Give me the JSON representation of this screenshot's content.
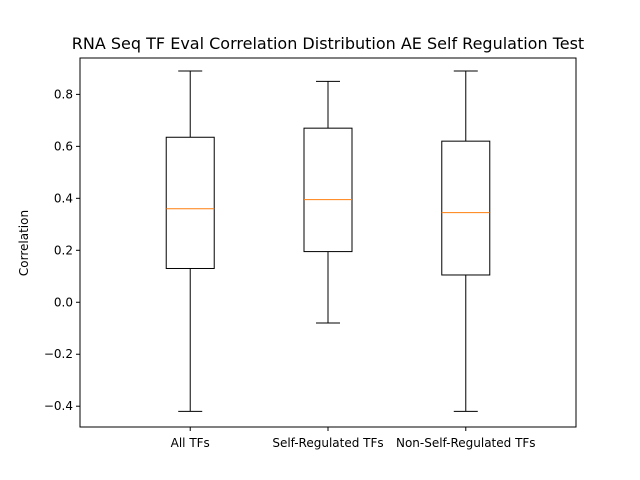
{
  "chart_data": {
    "type": "box",
    "title": "RNA Seq TF Eval Correlation Distribution AE Self Regulation Test",
    "xlabel": "",
    "ylabel": "Correlation",
    "ylim": [
      -0.48,
      0.94
    ],
    "yticks": [
      -0.4,
      -0.2,
      0.0,
      0.2,
      0.4,
      0.6,
      0.8
    ],
    "ytick_labels": [
      "−0.4",
      "−0.2",
      "0.0",
      "0.2",
      "0.4",
      "0.6",
      "0.8"
    ],
    "grid": false,
    "categories": [
      "All TFs",
      "Self-Regulated TFs",
      "Non-Self-Regulated TFs"
    ],
    "boxes": [
      {
        "whisker_low": -0.42,
        "q1": 0.13,
        "median": 0.36,
        "q3": 0.635,
        "whisker_high": 0.89
      },
      {
        "whisker_low": -0.08,
        "q1": 0.195,
        "median": 0.395,
        "q3": 0.67,
        "whisker_high": 0.85
      },
      {
        "whisker_low": -0.42,
        "q1": 0.105,
        "median": 0.345,
        "q3": 0.62,
        "whisker_high": 0.89
      }
    ],
    "colors": {
      "box": "#000000",
      "median": "#ff7f0e"
    }
  }
}
